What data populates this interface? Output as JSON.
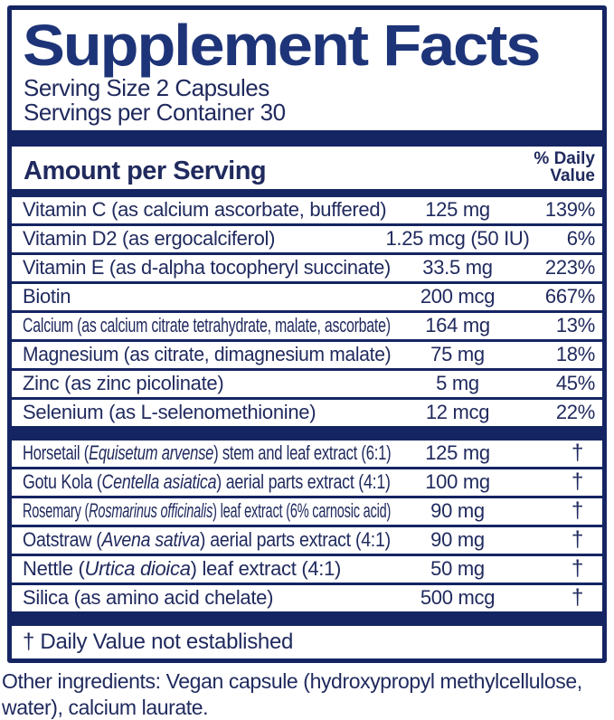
{
  "panel": {
    "title": "Supplement Facts",
    "serving_size": "Serving Size 2 Capsules",
    "servings_per_container": "Servings per Container 30",
    "amount_header": "Amount per Serving",
    "dv_header_line1": "% Daily",
    "dv_header_line2": "Value",
    "colors": {
      "navy": "#152563",
      "title_blue": "#1e3478",
      "text_navy": "#202a5e"
    },
    "nutrient_rows": [
      {
        "label": "Vitamin C (as calcium ascorbate, buffered)",
        "amount": "125 mg",
        "dv": "139%"
      },
      {
        "label": "Vitamin D2 (as ergocalciferol)",
        "amount": "1.25 mcg (50 IU)",
        "dv": "6%"
      },
      {
        "label": "Vitamin E (as d-alpha tocopheryl succinate)",
        "amount": "33.5 mg",
        "dv": "223%"
      },
      {
        "label": "Biotin",
        "amount": "200 mcg",
        "dv": "667%"
      },
      {
        "label": "Calcium (as calcium citrate tetrahydrate, malate, ascorbate)",
        "amount": "164 mg",
        "dv": "13%"
      },
      {
        "label": "Magnesium (as citrate, dimagnesium malate)",
        "amount": "75 mg",
        "dv": "18%"
      },
      {
        "label": "Zinc (as zinc picolinate)",
        "amount": "5 mg",
        "dv": "45%"
      },
      {
        "label": "Selenium (as L-selenomethionine)",
        "amount": "12 mcg",
        "dv": "22%"
      }
    ],
    "botanical_rows": [
      {
        "label_pre": "Horsetail (",
        "label_italic": "Equisetum arvense",
        "label_post": ") stem and leaf extract (6:1)",
        "amount": "125 mg",
        "dv": "†"
      },
      {
        "label_pre": "Gotu Kola (",
        "label_italic": "Centella asiatica",
        "label_post": ") aerial parts extract (4:1)",
        "amount": "100 mg",
        "dv": "†"
      },
      {
        "label_pre": "Rosemary (",
        "label_italic": "Rosmarinus officinalis",
        "label_post": ") leaf extract (6% carnosic acid)",
        "amount": "90 mg",
        "dv": "†"
      },
      {
        "label_pre": "Oatstraw (",
        "label_italic": "Avena sativa",
        "label_post": ") aerial parts extract (4:1)",
        "amount": "90 mg",
        "dv": "†"
      },
      {
        "label_pre": "Nettle (",
        "label_italic": "Urtica dioica",
        "label_post": ") leaf extract (4:1)",
        "amount": "50 mg",
        "dv": "†"
      },
      {
        "label_pre": "Silica (as amino acid chelate)",
        "label_italic": "",
        "label_post": "",
        "amount": "500 mcg",
        "dv": "†"
      }
    ],
    "footnote": "† Daily Value not established"
  },
  "other_ingredients": "Other ingredients: Vegan capsule (hydroxypropyl methylcellulose, water), calcium laurate."
}
